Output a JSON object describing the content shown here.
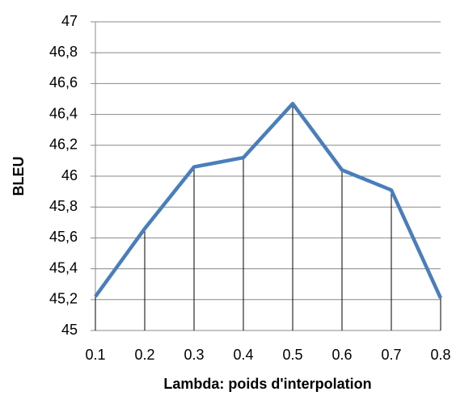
{
  "chart_data": {
    "type": "line",
    "x_label": "Lambda: poids d'interpolation",
    "y_label": "BLEU",
    "x": [
      0.1,
      0.2,
      0.3,
      0.4,
      0.5,
      0.6,
      0.7,
      0.8
    ],
    "series": [
      {
        "name": "BLEU",
        "color": "#4a7ebb",
        "values": [
          45.22,
          45.66,
          46.06,
          46.12,
          46.47,
          46.04,
          45.91,
          45.21
        ]
      }
    ],
    "xlim": [
      0.1,
      0.8
    ],
    "xticks": [
      0.1,
      0.2,
      0.3,
      0.4,
      0.5,
      0.6,
      0.7,
      0.8
    ],
    "ylim": [
      45,
      47
    ],
    "yticks": [
      45,
      {
        "value": 45.2,
        "label": "45,2"
      },
      {
        "value": 45.4,
        "label": "45,4"
      },
      {
        "value": 45.6,
        "label": "45,6"
      },
      {
        "value": 45.8,
        "label": "45,8"
      },
      46,
      {
        "value": 46.2,
        "label": "46,2"
      },
      {
        "value": 46.4,
        "label": "46,4"
      },
      {
        "value": 46.6,
        "label": "46,6"
      },
      {
        "value": 46.8,
        "label": "46,8"
      },
      47
    ],
    "grid": true,
    "drop_lines": true
  }
}
